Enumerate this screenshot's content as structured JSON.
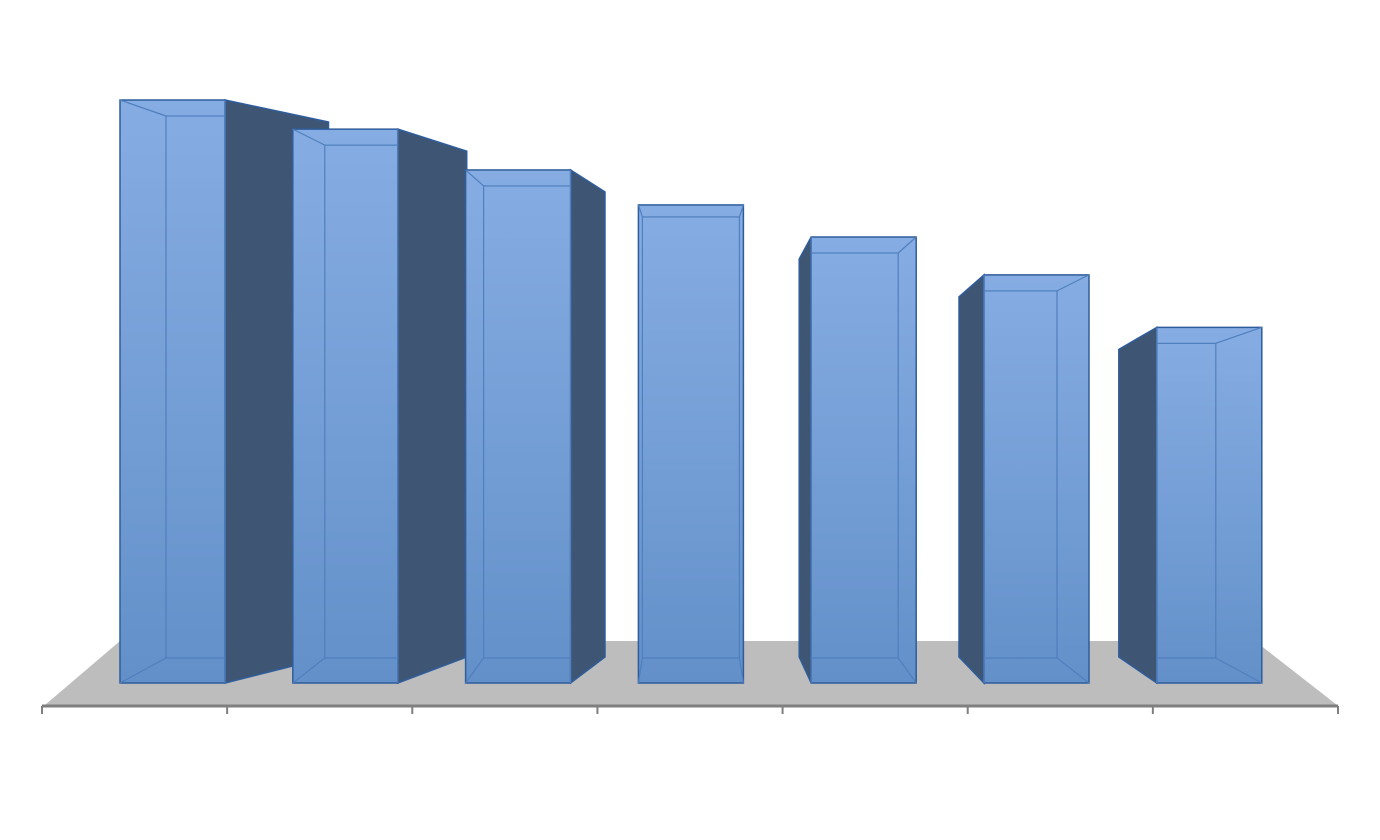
{
  "chart_data": {
    "type": "bar",
    "style": "3d-column",
    "categories": [
      "",
      "",
      "",
      "",
      "",
      "",
      ""
    ],
    "values": [
      100,
      95,
      88,
      82,
      76.5,
      70,
      61
    ],
    "ylim": [
      0,
      100
    ],
    "grid": false,
    "legend": "none",
    "title": "",
    "xlabel": "",
    "ylabel": ""
  },
  "colors": {
    "bar_front": "#6b97cf",
    "bar_front_light": "#86ade3",
    "bar_side": "#3e5674",
    "bar_edge": "#2f5d9c",
    "floor": "#bdbdbd",
    "axis": "#7f7f7f"
  }
}
